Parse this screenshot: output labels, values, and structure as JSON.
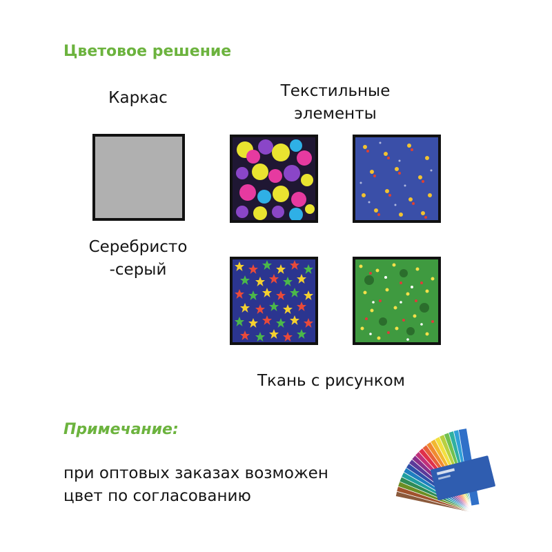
{
  "heading": "Цветовое решение",
  "frame": {
    "title": "Каркас",
    "color_name": "Серебристо\n-серый",
    "swatch_color": "#b0b0b0"
  },
  "textile": {
    "title": "Текстильные элементы",
    "caption": "Ткань с рисунком",
    "swatches": [
      {
        "name": "dark-bubbles-pattern",
        "base": "#1f1733"
      },
      {
        "name": "blue-birds-pattern",
        "base": "#3a4fa8"
      },
      {
        "name": "stars-pattern",
        "base": "#2b3590"
      },
      {
        "name": "green-flowers-pattern",
        "base": "#3f9a40"
      }
    ]
  },
  "note": {
    "title": "Примечание:",
    "text": "при оптовых заказах возможен цвет по согласованию"
  },
  "colors": {
    "accent_green": "#6cb33e"
  },
  "icons": {
    "palette": "color-fan-palette-icon"
  }
}
